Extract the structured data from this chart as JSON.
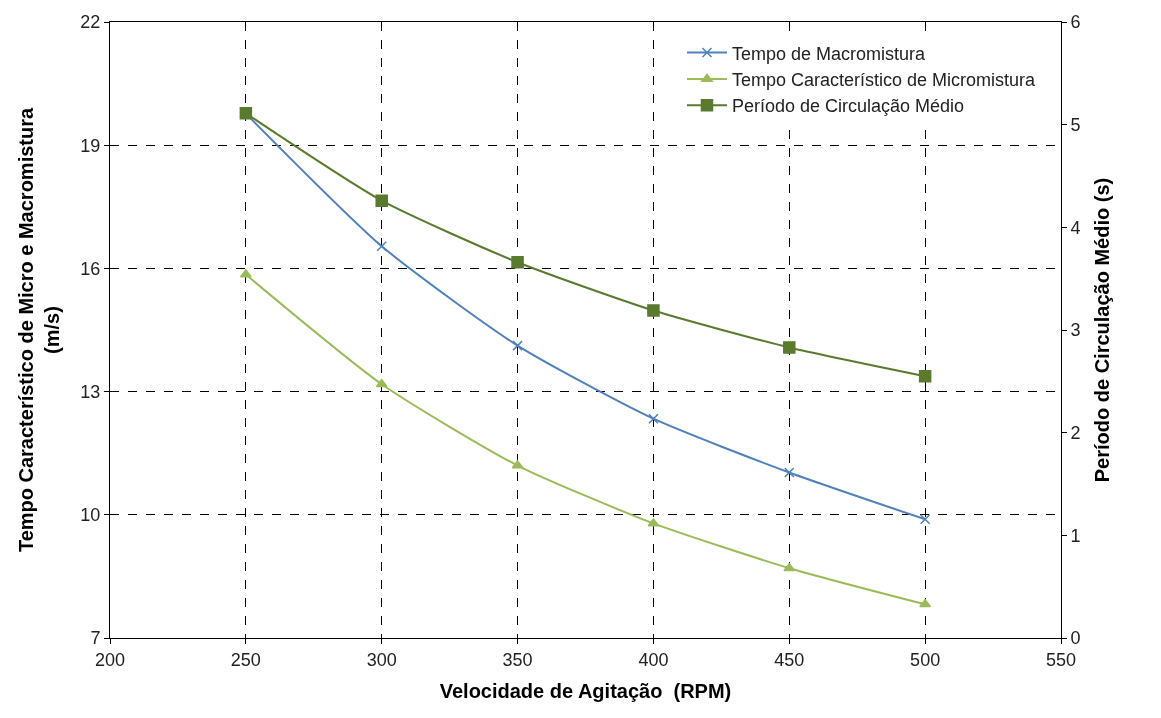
{
  "chart_data": {
    "type": "line",
    "xlabel": "Velocidade de Agitação  (RPM)",
    "ylabel": "Tempo Característico de Micro e Macromistura\n(m/s)",
    "y2label": "Período de Circulação Médio (s)",
    "x": [
      250,
      300,
      350,
      400,
      450,
      500
    ],
    "series": [
      {
        "name": "Tempo de Macromistura",
        "color": "#4f81bd",
        "marker": "cross",
        "values": [
          19.77,
          16.54,
          14.12,
          12.34,
          11.03,
          9.89
        ]
      },
      {
        "name": "Tempo Característico de Micromistura",
        "color": "#9bbb59",
        "marker": "triangle",
        "values": [
          15.85,
          13.18,
          11.2,
          9.79,
          8.7,
          7.82
        ]
      },
      {
        "name": "Período de Circulação Médio",
        "color": "#5a7a2e",
        "marker": "square",
        "axis": "y2",
        "values": [
          5.11,
          4.26,
          3.66,
          3.19,
          2.83,
          2.55
        ]
      }
    ],
    "xlim": [
      200,
      550
    ],
    "xticks": [
      200,
      250,
      300,
      350,
      400,
      450,
      500,
      550
    ],
    "ylim": [
      7,
      22
    ],
    "yticks": [
      7,
      10,
      13,
      16,
      19,
      22
    ],
    "y2lim": [
      0,
      6
    ],
    "y2ticks": [
      0,
      1,
      2,
      3,
      4,
      5,
      6
    ],
    "grid": true,
    "line_style": "solid",
    "legend": "top right"
  }
}
